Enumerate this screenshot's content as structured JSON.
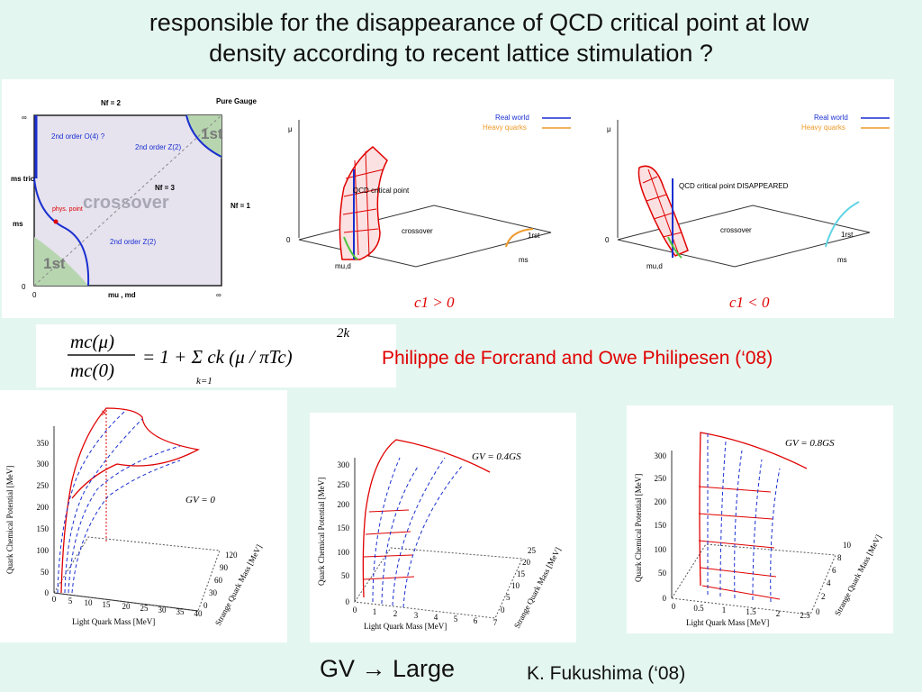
{
  "title": {
    "line1": "responsible for the disappearance of QCD critical point   at low",
    "line2": "density according  to  recent lattice stimulation ?"
  },
  "phase_diagram": {
    "top_label": "Nf = 2",
    "top_right_label": "Pure Gauge",
    "region_1st_top": "1st",
    "region_1st_bottom": "1st",
    "crossover": "crossover",
    "nf3": "Nf = 3",
    "nf1": "Nf = 1",
    "o4": "2nd order O(4) ?",
    "z2_top": "2nd order Z(2)",
    "z2_bottom": "2nd order Z(2)",
    "phys_point": "phys. point",
    "ms_tric": "ms tric",
    "ms": "ms",
    "x_axis": "mu , md",
    "zero": "0",
    "inf": "∞"
  },
  "surface_plot_1": {
    "legend_real": "Real world",
    "legend_heavy": "Heavy quarks",
    "annotation": "QCD critical point",
    "crossover": "crossover",
    "first": "1rst",
    "mu": "μ",
    "axis_mud": "mu,d",
    "axis_ms": "ms",
    "zero": "0",
    "condition": "c1 > 0"
  },
  "surface_plot_2": {
    "legend_real": "Real world",
    "legend_heavy": "Heavy quarks",
    "annotation": "QCD critical point DISAPPEARED",
    "crossover": "crossover",
    "first": "1rst",
    "mu": "μ",
    "axis_mud": "mu,d",
    "axis_ms": "ms",
    "zero": "0",
    "condition": "c1 < 0"
  },
  "formula": {
    "lhs_num": "mc(μ)",
    "lhs_den": "mc(0)",
    "rhs": "= 1 + Σ ck (μ / πTc)",
    "exponent": "2k",
    "sum_lower": "k=1"
  },
  "credit_forcrand": "Philippe de Forcrand and Owe Philipesen (‘08)",
  "fukushima_plots": [
    {
      "label": "GV = 0",
      "y_axis": "Quark Chemical Potential [MeV]",
      "x_axis": "Light Quark Mass [MeV]",
      "z_axis": "Strange Quark Mass [MeV]",
      "y_ticks": [
        "0",
        "50",
        "100",
        "150",
        "200",
        "250",
        "300",
        "350"
      ],
      "x_ticks": [
        "0",
        "5",
        "10",
        "15",
        "20",
        "25",
        "30",
        "35",
        "40"
      ],
      "z_ticks": [
        "0",
        "30",
        "60",
        "90",
        "120"
      ]
    },
    {
      "label": "GV = 0.4GS",
      "y_axis": "Quark Chemical Potential [MeV]",
      "x_axis": "Light Quark Mass [MeV]",
      "z_axis": "Strange Quark Mass [MeV]",
      "y_ticks": [
        "0",
        "50",
        "100",
        "150",
        "200",
        "250",
        "300"
      ],
      "x_ticks": [
        "0",
        "1",
        "2",
        "3",
        "4",
        "5",
        "6",
        "7"
      ],
      "z_ticks": [
        "0",
        "5",
        "10",
        "15",
        "20",
        "25"
      ]
    },
    {
      "label": "GV = 0.8GS",
      "y_axis": "Quark Chemical Potential [MeV]",
      "x_axis": "Light Quark Mass [MeV]",
      "z_axis": "Strange Quark Mass [MeV]",
      "y_ticks": [
        "0",
        "50",
        "100",
        "150",
        "200",
        "250",
        "300"
      ],
      "x_ticks": [
        "0",
        "0.5",
        "1",
        "1.5",
        "2",
        "2.5"
      ],
      "z_ticks": [
        "0",
        "2",
        "4",
        "6",
        "8",
        "10"
      ]
    }
  ],
  "gv_large": "GV → Large",
  "credit_fukushima": "K. Fukushima (‘08)",
  "colors": {
    "red": "#e00000",
    "blue": "#1a2fd0",
    "green": "#b7d6b0",
    "lavender": "#e6e2ee",
    "bg": "#e4f6f0"
  }
}
